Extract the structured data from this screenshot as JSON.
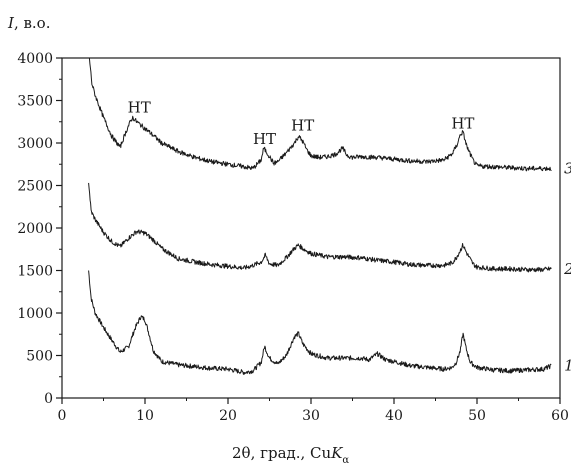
{
  "chart_data": {
    "type": "line",
    "title": "",
    "ylabel_italic": "I",
    "ylabel_rest": ", в.о.",
    "xlabel_main": "2θ, град., Cu",
    "xlabel_italic": "K",
    "xlabel_sub": "α",
    "xlim": [
      0,
      60
    ],
    "ylim": [
      0,
      4000
    ],
    "x_ticks": [
      0,
      10,
      20,
      30,
      40,
      50,
      60
    ],
    "y_ticks": [
      0,
      500,
      1000,
      1500,
      2000,
      2500,
      3000,
      3500,
      4000
    ],
    "grid": false,
    "legend": "none",
    "line_color": "#1a1a1a",
    "series": [
      {
        "name": "1",
        "x": [
          3.2,
          3.5,
          4,
          5,
          6,
          7,
          8,
          8.8,
          9.5,
          10,
          10.5,
          11,
          12,
          14,
          16,
          18,
          20,
          22,
          23,
          24,
          24.4,
          25,
          26,
          27,
          28,
          28.5,
          29,
          30,
          32,
          34,
          36,
          37,
          38,
          39,
          40,
          42,
          44,
          46,
          47,
          47.5,
          48,
          48.3,
          48.7,
          49.2,
          50,
          52,
          54,
          56,
          58,
          59
        ],
        "y": [
          1500,
          1180,
          1000,
          830,
          680,
          540,
          600,
          820,
          960,
          920,
          750,
          560,
          430,
          390,
          370,
          350,
          340,
          300,
          320,
          420,
          610,
          470,
          400,
          500,
          720,
          760,
          640,
          520,
          470,
          470,
          470,
          450,
          520,
          450,
          430,
          380,
          360,
          340,
          360,
          420,
          560,
          760,
          580,
          420,
          360,
          330,
          320,
          330,
          340,
          380
        ]
      },
      {
        "name": "2",
        "x": [
          3.2,
          3.5,
          4,
          5,
          6,
          7,
          8,
          9,
          10,
          11,
          12,
          14,
          16,
          18,
          20,
          22,
          23,
          24,
          24.5,
          25,
          26,
          27,
          28,
          28.5,
          29,
          30,
          32,
          34,
          36,
          38,
          40,
          42,
          44,
          46,
          47,
          47.5,
          48,
          48.3,
          48.8,
          49.5,
          50,
          52,
          54,
          56,
          58,
          59
        ],
        "y": [
          2550,
          2200,
          2100,
          1950,
          1840,
          1780,
          1880,
          1960,
          1940,
          1860,
          1760,
          1640,
          1600,
          1570,
          1550,
          1530,
          1560,
          1600,
          1680,
          1580,
          1560,
          1650,
          1760,
          1800,
          1760,
          1700,
          1660,
          1660,
          1650,
          1620,
          1600,
          1570,
          1560,
          1560,
          1590,
          1650,
          1740,
          1800,
          1700,
          1580,
          1540,
          1520,
          1520,
          1510,
          1510,
          1520
        ]
      },
      {
        "name": "3",
        "x": [
          3.3,
          3.6,
          4,
          5,
          6,
          7,
          7.5,
          8,
          8.5,
          9,
          10,
          11,
          12,
          14,
          16,
          18,
          20,
          22,
          23,
          24,
          24.3,
          24.8,
          25.5,
          26,
          27,
          28,
          28.5,
          29,
          29.5,
          30,
          31,
          32,
          33,
          33.8,
          34.3,
          35,
          36,
          38,
          40,
          42,
          44,
          46,
          47,
          47.6,
          48,
          48.3,
          48.8,
          49.5,
          50,
          52,
          54,
          56,
          58,
          59
        ],
        "y": [
          4000,
          3700,
          3560,
          3300,
          3080,
          2950,
          3080,
          3200,
          3300,
          3250,
          3170,
          3090,
          3000,
          2900,
          2830,
          2780,
          2750,
          2720,
          2700,
          2800,
          2940,
          2870,
          2760,
          2780,
          2880,
          3000,
          3080,
          3020,
          2920,
          2850,
          2830,
          2840,
          2870,
          2940,
          2860,
          2830,
          2840,
          2830,
          2810,
          2790,
          2780,
          2800,
          2870,
          2980,
          3100,
          3130,
          2950,
          2800,
          2730,
          2720,
          2710,
          2700,
          2700,
          2700
        ]
      }
    ],
    "annotations": [
      {
        "text": "HT",
        "x": 9.3,
        "y": 3360
      },
      {
        "text": "HT",
        "x": 24.4,
        "y": 2990
      },
      {
        "text": "HT",
        "x": 29.0,
        "y": 3150
      },
      {
        "text": "HT",
        "x": 48.3,
        "y": 3170
      }
    ],
    "series_labels": [
      {
        "text": "3",
        "x": 60.5,
        "y": 2700
      },
      {
        "text": "2",
        "x": 60.5,
        "y": 1520
      },
      {
        "text": "1",
        "x": 60.5,
        "y": 380
      }
    ]
  }
}
